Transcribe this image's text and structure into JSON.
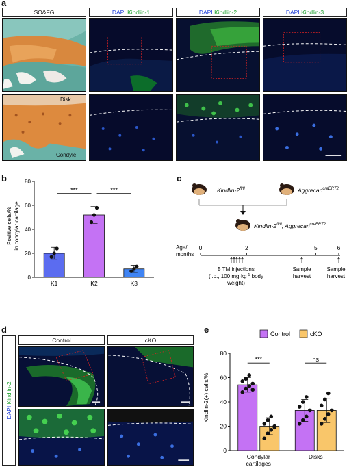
{
  "panel_a": {
    "letter": "a",
    "headers": [
      {
        "text": "SO&FG",
        "blue": "",
        "green": ""
      },
      {
        "text": "",
        "blue": "DAPI",
        "green": "Kindlin-1"
      },
      {
        "text": "",
        "blue": "DAPI",
        "green": "Kindlin-2"
      },
      {
        "text": "",
        "blue": "DAPI",
        "green": "Kindlin-3"
      }
    ],
    "labels": {
      "disk": "Disk",
      "condyle": "Condyle"
    }
  },
  "panel_b": {
    "letter": "b",
    "chart_data": {
      "type": "bar",
      "categories": [
        "K1",
        "K2",
        "K3"
      ],
      "values": [
        20,
        52,
        7
      ],
      "errors": [
        5,
        7,
        3
      ],
      "points": [
        [
          17,
          20,
          24
        ],
        [
          46,
          52,
          58
        ],
        [
          5,
          7,
          9
        ]
      ],
      "ylabel_line1": "Positive cells/%",
      "ylabel_line2": "in condylar cartilage",
      "ylim": [
        0,
        80
      ],
      "yticks": [
        "0",
        "20",
        "40",
        "60",
        "80"
      ],
      "colors": [
        "#5b6cf0",
        "#c472f4",
        "#3f84f4"
      ],
      "significance": [
        {
          "from": 0,
          "to": 1,
          "label": "***"
        },
        {
          "from": 1,
          "to": 2,
          "label": "***"
        }
      ]
    }
  },
  "panel_c": {
    "letter": "c",
    "mouse1": "Kindlin-2",
    "mouse1_sup": "fl/fl",
    "mouse2": "Aggrecan",
    "mouse2_sup": "creERT2",
    "cross": "Kindlin-2",
    "cross_sup1": "fl/fl",
    "cross_mid": "; Aggrecan",
    "cross_sup2": "creERT2",
    "age_label1": "Age/",
    "age_label2": "months",
    "ticks": [
      "0",
      "2",
      "5",
      "6"
    ],
    "inj_line1": "5 TM injections",
    "inj_line2": "(i.p., 100 mg·kg",
    "inj_sup": "-1",
    "inj_line2b": " body",
    "inj_line3": "weight)",
    "harvest1a": "Sample",
    "harvest1b": "harvest",
    "harvest2a": "Sample",
    "harvest2b": "harvest"
  },
  "panel_d": {
    "letter": "d",
    "headers": [
      "Control",
      "cKO"
    ],
    "side_blue": "DAPI",
    "side_green": "Kindlin-2"
  },
  "panel_e": {
    "letter": "e",
    "legend": [
      {
        "name": "Control",
        "color": "#c472f4"
      },
      {
        "name": "cKO",
        "color": "#f9c66a"
      }
    ],
    "chart_data": {
      "type": "bar",
      "categories_line1": [
        "Condylar",
        "Disks"
      ],
      "categories_line2": [
        "cartilages",
        ""
      ],
      "series": [
        {
          "name": "Control",
          "values": [
            54,
            33
          ],
          "errors": [
            6,
            9
          ],
          "points": [
            [
              48,
              51,
              53,
              55,
              57,
              59,
              62,
              50
            ],
            [
              22,
              25,
              28,
              33,
              36,
              40,
              44
            ]
          ]
        },
        {
          "name": "cKO",
          "values": [
            20,
            33
          ],
          "errors": [
            7,
            10
          ],
          "points": [
            [
              10,
              14,
              17,
              20,
              22,
              25,
              28,
              19
            ],
            [
              22,
              26,
              30,
              33,
              37,
              42,
              47
            ]
          ]
        }
      ],
      "ylabel": "Kindlin-2(+) cells/%",
      "ylim": [
        0,
        80
      ],
      "yticks": [
        "0",
        "20",
        "40",
        "60",
        "80"
      ],
      "significance": [
        {
          "label": "***"
        },
        {
          "label": "ns"
        }
      ]
    }
  }
}
